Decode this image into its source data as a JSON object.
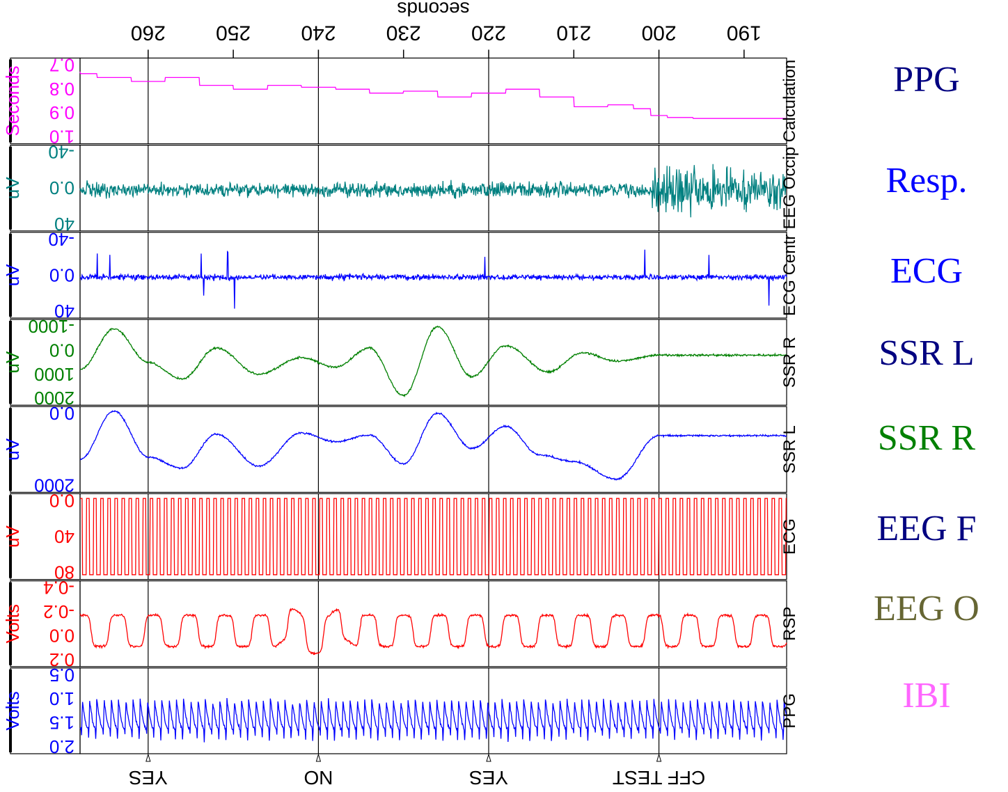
{
  "legend": {
    "items": [
      {
        "label": "PPG",
        "color": "#000080"
      },
      {
        "label": "Resp.",
        "color": "#0000ff"
      },
      {
        "label": "ECG",
        "color": "#0000ff"
      },
      {
        "label": "SSR L",
        "color": "#000080"
      },
      {
        "label": "SSR R",
        "color": "#008000"
      },
      {
        "label": "EEG F",
        "color": "#000080"
      },
      {
        "label": "EEG O",
        "color": "#666633"
      },
      {
        "label": "IBI",
        "color": "#ff66ff"
      }
    ]
  },
  "chart_data": {
    "type": "line",
    "xlabel": "seconds",
    "xlim": [
      185,
      268
    ],
    "xticks": [
      190,
      200,
      210,
      220,
      230,
      240,
      250,
      260
    ],
    "event_markers": [
      {
        "x": 200,
        "label": "CFF TEST"
      },
      {
        "x": 220,
        "label": "YES"
      },
      {
        "x": 240,
        "label": "NO"
      },
      {
        "x": 260,
        "label": "YES"
      }
    ],
    "series": [
      {
        "name": "PPG",
        "unit": "Volts",
        "color": "#0000ff",
        "ylim": [
          0.4,
          2.0
        ],
        "ticks": [
          "0.5",
          "1.0",
          "1.5",
          "2.0"
        ],
        "pattern": "pulse",
        "period_s": 0.85,
        "amplitude": 0.55,
        "baseline": 1.2
      },
      {
        "name": "RSP",
        "unit": "Volts",
        "color": "#ff0000",
        "ylim": [
          -0.5,
          0.1
        ],
        "ticks": [
          "-0.4",
          "-0.2",
          "0.0",
          "0.2"
        ],
        "pattern": "respiration",
        "period_s": 4.2,
        "amplitude": 0.11,
        "baseline": -0.15
      },
      {
        "name": "ECG",
        "unit": "uV",
        "color": "#ff0000",
        "ylim": [
          -5,
          85
        ],
        "ticks": [
          "0.0",
          "40",
          "80"
        ],
        "pattern": "square",
        "period_s": 0.83,
        "amplitude": 80,
        "baseline": 0
      },
      {
        "name": "SSR L",
        "unit": "uV",
        "color": "#0000ff",
        "ylim": [
          -1500,
          2400
        ],
        "ticks": [
          "0.0",
          "2000"
        ],
        "pattern": "ssr",
        "segments_x": [
          185,
          200,
          205,
          210,
          214,
          218,
          222,
          226,
          230,
          234,
          238,
          242,
          247,
          252,
          256,
          260,
          264,
          268
        ],
        "segments_y": [
          -180,
          -180,
          1800,
          1000,
          700,
          -600,
          400,
          -1200,
          1100,
          -200,
          100,
          -300,
          1200,
          -250,
          1300,
          800,
          -1300,
          900
        ]
      },
      {
        "name": "SSR R",
        "unit": "uV",
        "color": "#008000",
        "ylim": [
          -1500,
          2100
        ],
        "ticks": [
          "-1000",
          "0.0",
          "1000",
          "2000"
        ],
        "pattern": "ssr",
        "segments_x": [
          185,
          200,
          205,
          209,
          213,
          218,
          222,
          226,
          230,
          234,
          238,
          242,
          247,
          252,
          256,
          260,
          264,
          268
        ],
        "segments_y": [
          0,
          0,
          250,
          -100,
          700,
          -400,
          900,
          -1200,
          1700,
          -300,
          500,
          100,
          800,
          -300,
          1000,
          300,
          -1100,
          600
        ]
      },
      {
        "name": "ECG Centr",
        "unit": "uV",
        "color": "#0000ff",
        "ylim": [
          -55,
          50
        ],
        "ticks": [
          "-40",
          "0.0",
          "40"
        ],
        "pattern": "spiky",
        "amplitude": 5,
        "spike_amp": 38
      },
      {
        "name": "EEG Occip",
        "unit": "uV",
        "color": "#008080",
        "ylim": [
          -55,
          50
        ],
        "ticks": [
          "-40",
          "0.0",
          "40"
        ],
        "pattern": "noise",
        "amplitude": 10,
        "burst_range": [
          185,
          201
        ],
        "burst_amplitude": 32
      },
      {
        "name": "Calculation",
        "unit": "Seconds",
        "color": "#ff00ff",
        "ylim": [
          0.62,
          1.06
        ],
        "ticks": [
          "0.7",
          "0.8",
          "0.9",
          "1.0"
        ],
        "pattern": "steps",
        "segments_x": [
          185,
          190,
          196,
          199,
          201,
          203,
          206,
          210,
          214,
          218,
          222,
          226,
          230,
          234,
          238,
          242,
          246,
          250,
          254,
          258,
          262,
          266,
          268
        ],
        "segments_y": [
          0.93,
          0.93,
          0.925,
          0.915,
          0.88,
          0.86,
          0.87,
          0.82,
          0.78,
          0.8,
          0.82,
          0.79,
          0.8,
          0.78,
          0.77,
          0.76,
          0.78,
          0.76,
          0.72,
          0.74,
          0.72,
          0.7,
          0.69
        ]
      }
    ]
  }
}
